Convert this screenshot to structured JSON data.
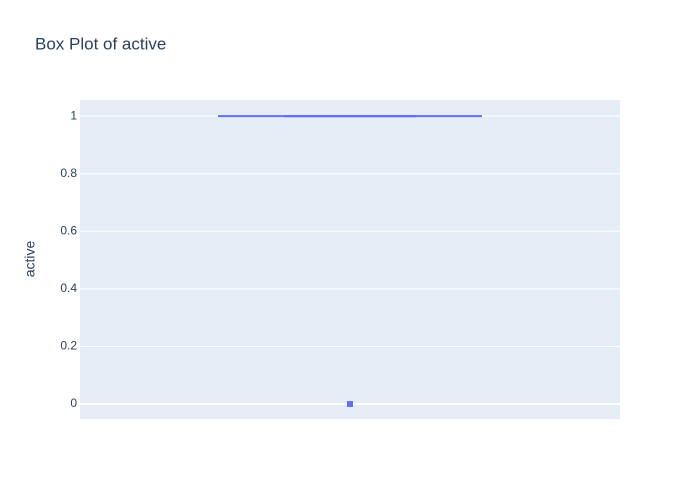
{
  "chart_data": {
    "type": "box",
    "title": "Box Plot of active",
    "y_label": "active",
    "box": {
      "lower_fence": 1,
      "q1": 1,
      "median": 1,
      "q3": 1,
      "upper_fence": 1
    },
    "outliers": [
      0
    ],
    "color": "#636efa",
    "ylim": [
      -0.052,
      1.056
    ],
    "yticks": [
      0,
      0.2,
      0.4,
      0.6,
      0.8,
      1
    ],
    "grid": true
  }
}
